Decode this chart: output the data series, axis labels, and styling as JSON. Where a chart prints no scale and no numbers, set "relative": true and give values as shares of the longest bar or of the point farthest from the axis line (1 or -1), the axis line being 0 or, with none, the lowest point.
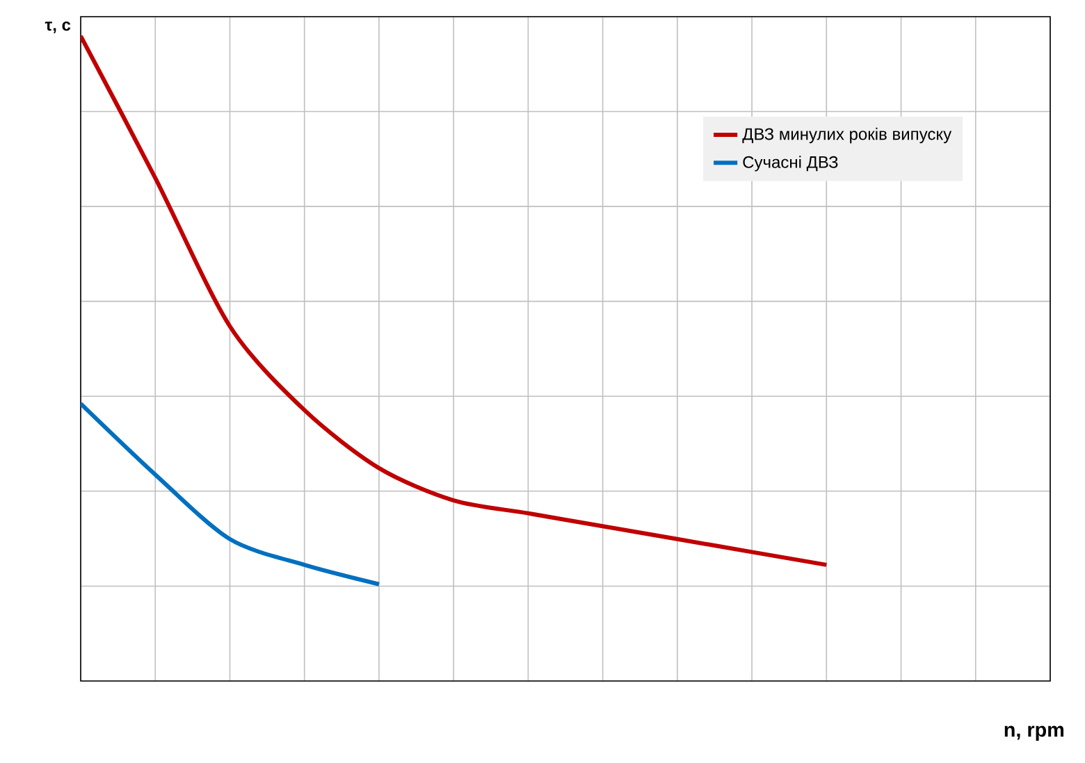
{
  "chart_data": {
    "type": "line",
    "relative": true,
    "xlabel": "n, rpm",
    "ylabel": "τ, с",
    "categories": [
      null,
      null,
      null,
      null,
      null,
      null,
      null,
      null,
      null,
      null,
      null,
      null,
      null,
      null
    ],
    "series": [
      {
        "name": "ДВЗ минулих років випуску",
        "color": "#c00000",
        "values": [
          1.0,
          0.78,
          0.55,
          0.42,
          0.33,
          0.28,
          0.26,
          0.24,
          0.22,
          0.2,
          0.18,
          null,
          null,
          null
        ]
      },
      {
        "name": "Сучасні ДВЗ",
        "color": "#0070c0",
        "values": [
          0.43,
          0.32,
          0.22,
          0.18,
          0.15,
          null,
          null,
          null,
          null,
          null,
          null,
          null,
          null,
          null
        ]
      }
    ],
    "grid": true,
    "legend": "top right",
    "marker": "none",
    "line_style": "solid"
  }
}
